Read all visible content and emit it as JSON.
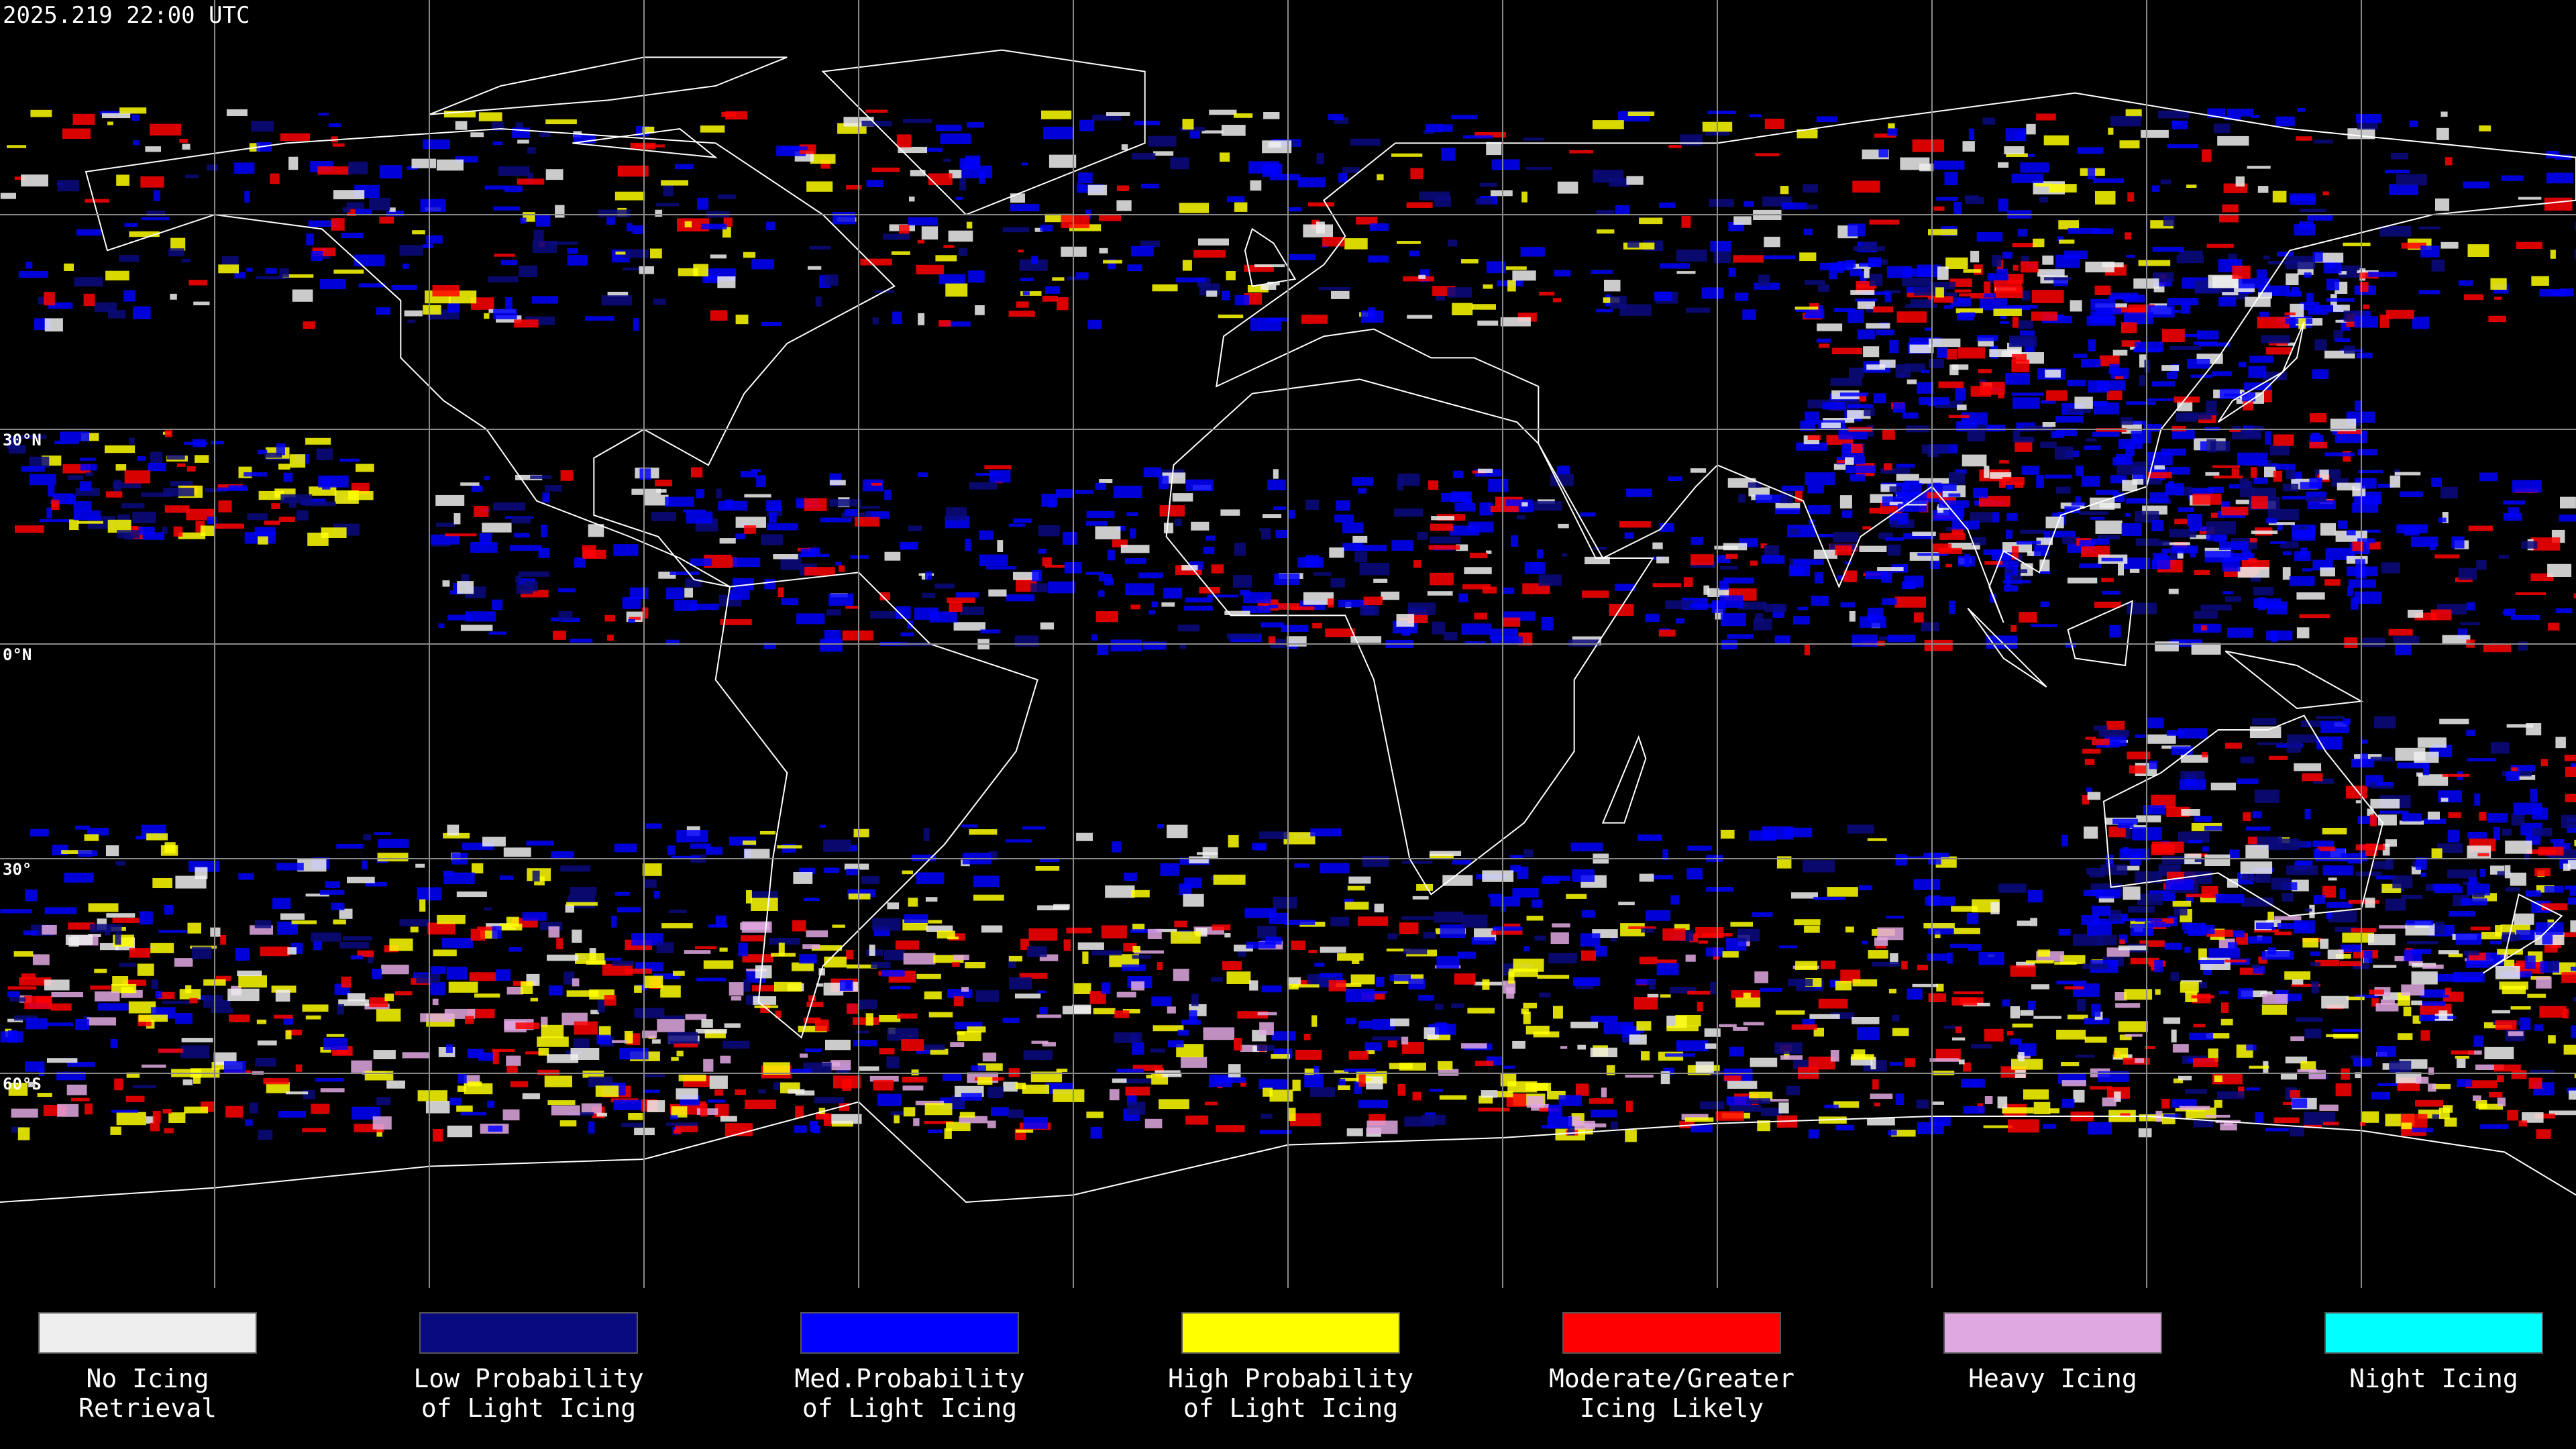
{
  "header": {
    "timestamp": "2025.219 22:00 UTC"
  },
  "map": {
    "latitude_labels": [
      "30°N",
      "0°N",
      "30°",
      "60°S"
    ]
  },
  "legend": {
    "items": [
      {
        "label": [
          "No Icing",
          "Retrieval"
        ],
        "color": "#eeeeee"
      },
      {
        "label": [
          "Low Probability",
          "of Light Icing"
        ],
        "color": "#0a0a80"
      },
      {
        "label": [
          "Med.Probability",
          "of Light Icing"
        ],
        "color": "#0000ff"
      },
      {
        "label": [
          "High Probability",
          "of Light Icing"
        ],
        "color": "#ffff00"
      },
      {
        "label": [
          "Moderate/Greater",
          "Icing Likely"
        ],
        "color": "#ff0000"
      },
      {
        "label": [
          "Heavy Icing"
        ],
        "color": "#e0a8e0"
      },
      {
        "label": [
          "Night Icing"
        ],
        "color": "#00ffff"
      }
    ]
  }
}
